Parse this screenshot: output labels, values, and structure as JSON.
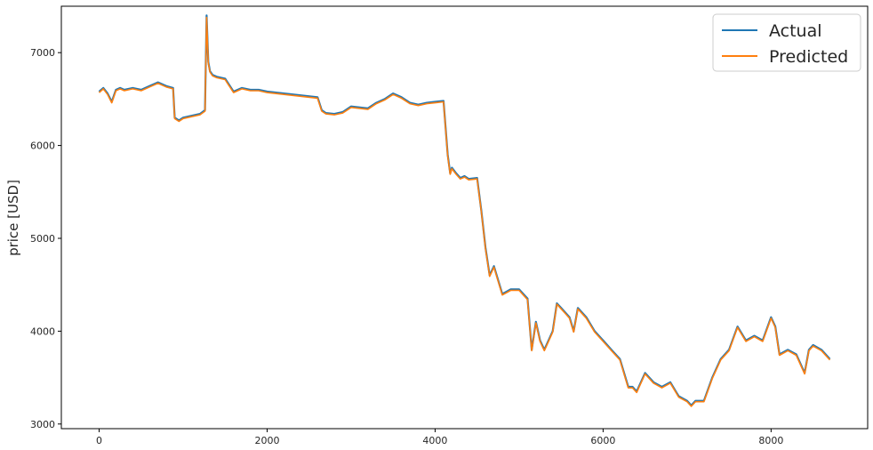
{
  "chart_data": {
    "type": "line",
    "title": "",
    "xlabel": "",
    "ylabel": "price [USD]",
    "xlim": [
      -450,
      9150
    ],
    "ylim": [
      2950,
      7500
    ],
    "xticks": [
      0,
      2000,
      4000,
      6000,
      8000
    ],
    "yticks": [
      3000,
      4000,
      5000,
      6000,
      7000
    ],
    "grid": false,
    "legend_position": "top-right",
    "colors": {
      "Actual": "#1f77b4",
      "Predicted": "#ff7f0e"
    },
    "series": [
      {
        "name": "Actual",
        "x": [
          0,
          50,
          100,
          150,
          200,
          250,
          300,
          400,
          500,
          600,
          700,
          800,
          880,
          900,
          950,
          1000,
          1100,
          1200,
          1260,
          1280,
          1300,
          1320,
          1350,
          1400,
          1500,
          1600,
          1700,
          1800,
          1900,
          2000,
          2200,
          2400,
          2600,
          2650,
          2700,
          2800,
          2900,
          3000,
          3200,
          3300,
          3400,
          3500,
          3600,
          3700,
          3800,
          3900,
          4000,
          4100,
          4150,
          4180,
          4200,
          4250,
          4300,
          4350,
          4400,
          4500,
          4550,
          4600,
          4650,
          4700,
          4750,
          4800,
          4900,
          5000,
          5100,
          5150,
          5200,
          5250,
          5300,
          5400,
          5450,
          5500,
          5550,
          5600,
          5650,
          5700,
          5800,
          5900,
          6000,
          6100,
          6200,
          6300,
          6350,
          6400,
          6500,
          6600,
          6700,
          6800,
          6900,
          7000,
          7050,
          7100,
          7200,
          7300,
          7400,
          7500,
          7600,
          7700,
          7800,
          7900,
          8000,
          8050,
          8100,
          8200,
          8300,
          8400,
          8450,
          8500,
          8600,
          8700
        ],
        "y": [
          6580,
          6620,
          6560,
          6470,
          6600,
          6620,
          6600,
          6620,
          6600,
          6640,
          6680,
          6640,
          6620,
          6300,
          6270,
          6300,
          6320,
          6340,
          6380,
          7400,
          6900,
          6800,
          6760,
          6740,
          6720,
          6580,
          6620,
          6600,
          6600,
          6580,
          6560,
          6540,
          6520,
          6380,
          6350,
          6340,
          6360,
          6420,
          6400,
          6460,
          6500,
          6560,
          6520,
          6460,
          6440,
          6460,
          6470,
          6480,
          5900,
          5700,
          5760,
          5700,
          5650,
          5670,
          5640,
          5650,
          5300,
          4900,
          4600,
          4700,
          4550,
          4400,
          4450,
          4450,
          4350,
          3800,
          4100,
          3900,
          3800,
          4000,
          4300,
          4250,
          4200,
          4150,
          4000,
          4250,
          4150,
          4000,
          3900,
          3800,
          3700,
          3400,
          3400,
          3350,
          3550,
          3450,
          3400,
          3450,
          3300,
          3250,
          3200,
          3250,
          3250,
          3500,
          3700,
          3800,
          4050,
          3900,
          3950,
          3900,
          4150,
          4050,
          3750,
          3800,
          3750,
          3550,
          3800,
          3850,
          3800,
          3700
        ]
      },
      {
        "name": "Predicted",
        "x": [
          0,
          50,
          100,
          150,
          200,
          250,
          300,
          400,
          500,
          600,
          700,
          800,
          880,
          900,
          950,
          1000,
          1100,
          1200,
          1260,
          1280,
          1300,
          1320,
          1350,
          1400,
          1500,
          1600,
          1700,
          1800,
          1900,
          2000,
          2200,
          2400,
          2600,
          2650,
          2700,
          2800,
          2900,
          3000,
          3200,
          3300,
          3400,
          3500,
          3600,
          3700,
          3800,
          3900,
          4000,
          4100,
          4150,
          4180,
          4200,
          4250,
          4300,
          4350,
          4400,
          4500,
          4550,
          4600,
          4650,
          4700,
          4750,
          4800,
          4900,
          5000,
          5100,
          5150,
          5200,
          5250,
          5300,
          5400,
          5450,
          5500,
          5550,
          5600,
          5650,
          5700,
          5800,
          5900,
          6000,
          6100,
          6200,
          6300,
          6350,
          6400,
          6500,
          6600,
          6700,
          6800,
          6900,
          7000,
          7050,
          7100,
          7200,
          7300,
          7400,
          7500,
          7600,
          7700,
          7800,
          7900,
          8000,
          8050,
          8100,
          8200,
          8300,
          8400,
          8450,
          8500,
          8600,
          8700
        ],
        "y": [
          6570,
          6610,
          6550,
          6460,
          6590,
          6610,
          6590,
          6610,
          6590,
          6630,
          6670,
          6630,
          6610,
          6290,
          6260,
          6290,
          6310,
          6330,
          6370,
          7380,
          6890,
          6790,
          6750,
          6730,
          6710,
          6570,
          6610,
          6590,
          6590,
          6570,
          6550,
          6530,
          6510,
          6370,
          6340,
          6330,
          6350,
          6410,
          6390,
          6450,
          6490,
          6550,
          6510,
          6450,
          6430,
          6450,
          6460,
          6470,
          5890,
          5690,
          5750,
          5690,
          5640,
          5660,
          5630,
          5640,
          5290,
          4890,
          4590,
          4690,
          4540,
          4390,
          4440,
          4440,
          4340,
          3790,
          4090,
          3890,
          3790,
          3990,
          4290,
          4240,
          4190,
          4140,
          3990,
          4240,
          4140,
          3990,
          3890,
          3790,
          3690,
          3390,
          3390,
          3340,
          3540,
          3440,
          3390,
          3440,
          3290,
          3240,
          3190,
          3240,
          3240,
          3490,
          3690,
          3790,
          4040,
          3890,
          3940,
          3890,
          4140,
          4040,
          3740,
          3790,
          3740,
          3540,
          3790,
          3840,
          3790,
          3690
        ]
      }
    ]
  }
}
